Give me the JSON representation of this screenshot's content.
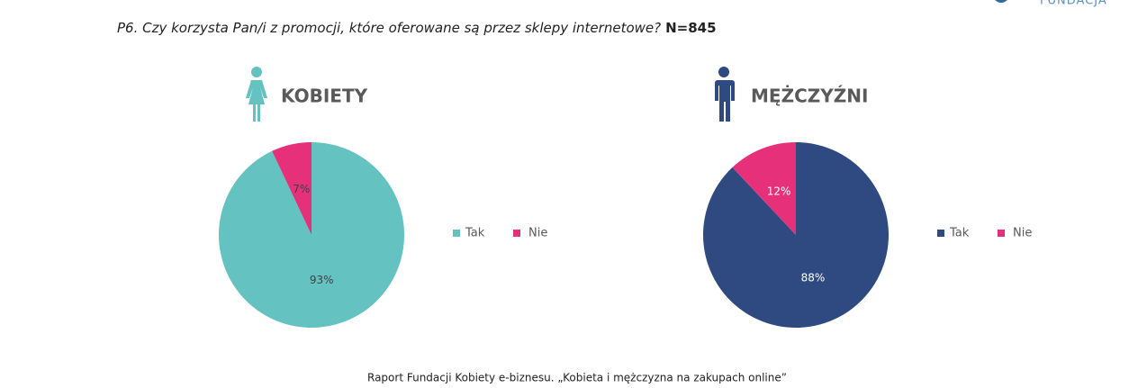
{
  "title": "P6. Czy korzysta Pan/i z promocji, które oferowane są przez sklepy internetowe?",
  "sample": "N=845",
  "logo_text": "FUNDACJA",
  "footer": "Raport Fundacji Kobiety e-biznesu. „Kobieta i mężczyzna na zakupach online”",
  "chart_data": [
    {
      "type": "pie",
      "title": "KOBIETY",
      "categories": [
        "Tak",
        "Nie"
      ],
      "values": [
        93,
        7
      ],
      "value_labels": [
        "93%",
        "7%"
      ],
      "colors": [
        "#64c2c0",
        "#e6317a"
      ],
      "label_color": "#404040"
    },
    {
      "type": "pie",
      "title": "MĘŻCZYŹNI",
      "categories": [
        "Tak",
        "Nie"
      ],
      "values": [
        88,
        12
      ],
      "value_labels": [
        "88%",
        "12%"
      ],
      "colors": [
        "#2e4a80",
        "#e6317a"
      ],
      "label_color": "#ffffff"
    }
  ]
}
